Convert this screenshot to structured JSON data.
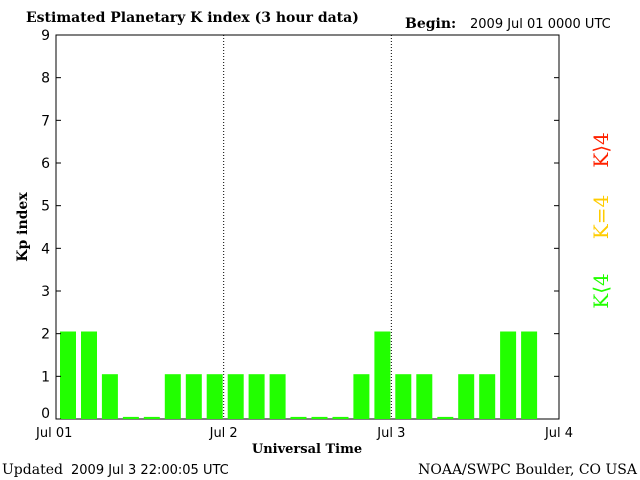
{
  "header": {
    "title": "Estimated Planetary K index (3 hour data)",
    "begin_label": "Begin:",
    "begin_value": "2009 Jul 01 0000 UTC"
  },
  "footer": {
    "updated_label": "Updated",
    "updated_value": "2009 Jul  3 22:00:05 UTC",
    "credit": "NOAA/SWPC Boulder, CO USA"
  },
  "legend": {
    "high": "K⟩4",
    "equal": "K=4",
    "low": "K⟨4"
  },
  "colors": {
    "low": "#22ff00",
    "equal": "#ffcc00",
    "high": "#ff2200",
    "bar": "#22ff00"
  },
  "chart_data": {
    "type": "bar",
    "title": "Estimated Planetary K index (3 hour data)",
    "xlabel": "Universal Time",
    "ylabel": "Kp index",
    "ylim": [
      0,
      9
    ],
    "yticks": [
      0,
      1,
      2,
      3,
      4,
      5,
      6,
      7,
      8,
      9
    ],
    "x_tick_labels": [
      "Jul 01",
      "Jul 2",
      "Jul 3",
      "Jul 4"
    ],
    "grid": "dotted vertical lines at day boundaries",
    "intervals_per_day": 8,
    "values": [
      2,
      2,
      1,
      0,
      0,
      1,
      1,
      1,
      1,
      1,
      1,
      0,
      0,
      0,
      1,
      2,
      1,
      1,
      0,
      1,
      1,
      2,
      2
    ]
  }
}
